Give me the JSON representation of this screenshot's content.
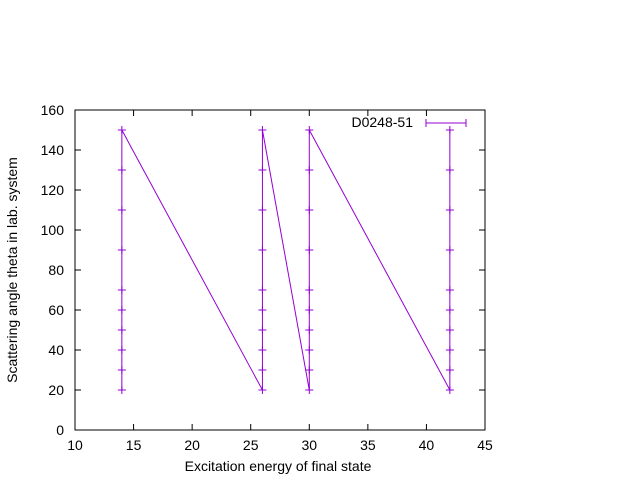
{
  "chart_data": {
    "type": "line",
    "xlabel": "Excitation energy of final state",
    "ylabel": "Scattering angle theta in lab. system",
    "xlim": [
      10,
      45
    ],
    "ylim": [
      0,
      160
    ],
    "xticks": [
      10,
      15,
      20,
      25,
      30,
      35,
      40,
      45
    ],
    "yticks": [
      0,
      20,
      40,
      60,
      80,
      100,
      120,
      140,
      160
    ],
    "grid": false,
    "legend_position": "top-right",
    "series": [
      {
        "name": "D0248-51",
        "color": "#9400d3",
        "marker": "plus",
        "points": [
          [
            14,
            20
          ],
          [
            14,
            30
          ],
          [
            14,
            40
          ],
          [
            14,
            50
          ],
          [
            14,
            60
          ],
          [
            14,
            70
          ],
          [
            14,
            90
          ],
          [
            14,
            110
          ],
          [
            14,
            130
          ],
          [
            14,
            150
          ],
          [
            26,
            20
          ],
          [
            26,
            30
          ],
          [
            26,
            40
          ],
          [
            26,
            50
          ],
          [
            26,
            60
          ],
          [
            26,
            70
          ],
          [
            26,
            90
          ],
          [
            26,
            110
          ],
          [
            26,
            130
          ],
          [
            26,
            150
          ],
          [
            30,
            20
          ],
          [
            30,
            30
          ],
          [
            30,
            40
          ],
          [
            30,
            50
          ],
          [
            30,
            60
          ],
          [
            30,
            70
          ],
          [
            30,
            90
          ],
          [
            30,
            110
          ],
          [
            30,
            130
          ],
          [
            30,
            150
          ],
          [
            42,
            20
          ],
          [
            42,
            30
          ],
          [
            42,
            40
          ],
          [
            42,
            50
          ],
          [
            42,
            60
          ],
          [
            42,
            70
          ],
          [
            42,
            90
          ],
          [
            42,
            110
          ],
          [
            42,
            130
          ],
          [
            42,
            150
          ]
        ]
      }
    ]
  }
}
